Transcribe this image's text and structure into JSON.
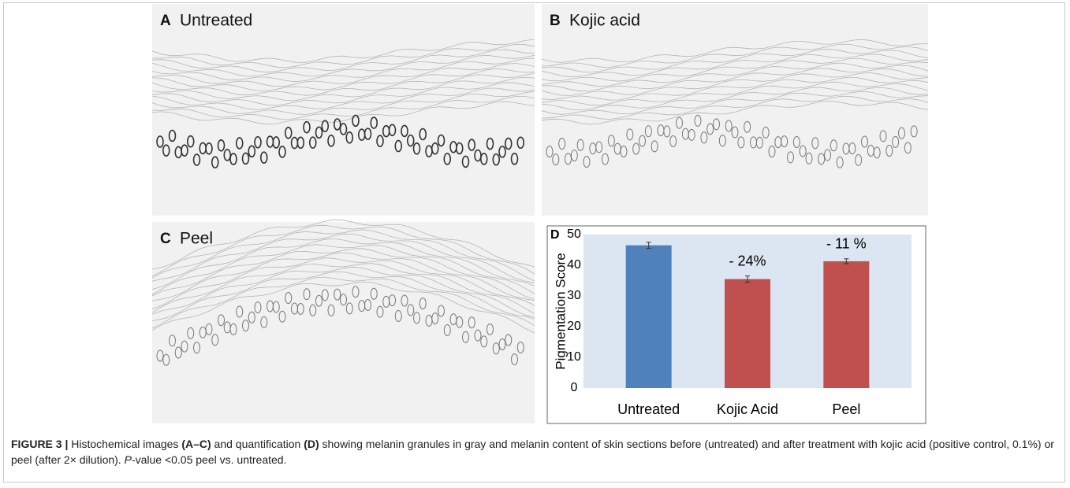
{
  "panels": [
    {
      "letter": "A",
      "label": "Untreated"
    },
    {
      "letter": "B",
      "label": "Kojic acid"
    },
    {
      "letter": "C",
      "label": "Peel"
    }
  ],
  "chart_data": {
    "type": "bar",
    "panel_label": "D",
    "y_label": "Pigmentation Score",
    "categories": [
      "Untreated",
      "Kojic Acid",
      "Peel"
    ],
    "values": [
      46.5,
      35.5,
      41.3
    ],
    "errors": [
      1.0,
      1.0,
      0.8
    ],
    "colors": [
      "#4f81bd",
      "#c0504d",
      "#c0504d"
    ],
    "ylim": [
      0,
      50
    ],
    "yticks": [
      0,
      10,
      20,
      30,
      40,
      50
    ],
    "annotations": [
      {
        "category": "Kojic Acid",
        "text": "- 24%"
      },
      {
        "category": "Peel",
        "text": "- 11 %"
      }
    ]
  },
  "caption": [
    {
      "text": "FIGURE 3 |",
      "style": "bold"
    },
    {
      "text": " Histochemical images ",
      "style": "normal"
    },
    {
      "text": "(A–C)",
      "style": "bold"
    },
    {
      "text": " and quantification ",
      "style": "normal"
    },
    {
      "text": "(D)",
      "style": "bold"
    },
    {
      "text": " showing melanin granules in gray and melanin content of skin sections before (untreated) and after treatment with kojic acid (positive control, 0.1%) or peel (after 2× dilution). ",
      "style": "normal"
    },
    {
      "text": "P",
      "style": "italic"
    },
    {
      "text": "-value <0.05 peel vs. untreated.",
      "style": "normal"
    }
  ]
}
